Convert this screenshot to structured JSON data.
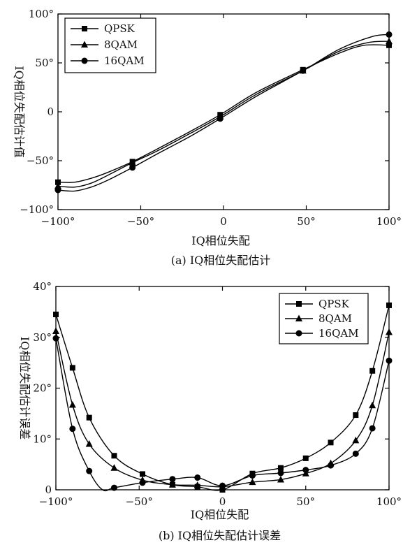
{
  "chart_data": [
    {
      "type": "line",
      "caption": "(a) IQ相位失配估计",
      "xlabel": "IQ相位失配",
      "ylabel": "IQ相位失配估计值",
      "xlim": [
        -100,
        100
      ],
      "ylim": [
        -100,
        100
      ],
      "xticks": [
        -100,
        -50,
        0,
        50,
        100
      ],
      "yticks": [
        -100,
        -50,
        0,
        50,
        100
      ],
      "xtick_labels": [
        "−100°",
        "−50°",
        "0",
        "50°",
        "100°"
      ],
      "ytick_labels": [
        "−100°",
        "−50°",
        "0",
        "50°",
        "100°"
      ],
      "legend": "top-left",
      "series": [
        {
          "name": "QPSK",
          "marker": "square",
          "x": [
            -100,
            -90,
            -80,
            -70,
            -55,
            -40,
            -20,
            -2,
            20,
            48,
            70,
            85,
            100
          ],
          "y": [
            -72,
            -72,
            -68,
            -62,
            -51,
            -38,
            -20,
            -3,
            20,
            43,
            60,
            68,
            68
          ],
          "marker_x": [
            -100,
            -55,
            -2,
            48,
            100
          ],
          "marker_y": [
            -72,
            -51,
            -3,
            43,
            68
          ]
        },
        {
          "name": "8QAM",
          "marker": "triangle",
          "x": [
            -100,
            -90,
            -80,
            -70,
            -55,
            -40,
            -20,
            -2,
            20,
            48,
            70,
            88,
            100
          ],
          "y": [
            -76,
            -77,
            -73,
            -65,
            -52,
            -40,
            -22,
            -5,
            18,
            42,
            62,
            71,
            72
          ],
          "marker_x": [
            -100,
            -55,
            -2,
            48,
            100
          ],
          "marker_y": [
            -76,
            -52,
            -5,
            42,
            72
          ]
        },
        {
          "name": "16QAM",
          "marker": "circle",
          "x": [
            -100,
            -90,
            -80,
            -70,
            -55,
            -40,
            -20,
            -2,
            20,
            48,
            70,
            90,
            100
          ],
          "y": [
            -80,
            -81,
            -77,
            -70,
            -57,
            -43,
            -25,
            -7,
            16,
            42,
            64,
            77,
            79
          ],
          "marker_x": [
            -100,
            -55,
            -2,
            48,
            100
          ],
          "marker_y": [
            -80,
            -57,
            -7,
            42,
            79
          ]
        }
      ]
    },
    {
      "type": "line",
      "caption": "(b) IQ相位失配估计误差",
      "xlabel": "IQ相位失配",
      "ylabel": "IQ相位失配估计误差",
      "xlim": [
        -100,
        100
      ],
      "ylim": [
        0,
        40
      ],
      "xticks": [
        -100,
        -50,
        0,
        50,
        100
      ],
      "yticks": [
        0,
        10,
        20,
        30,
        40
      ],
      "xtick_labels": [
        "−100°",
        "−50°",
        "0",
        "50°",
        "100°"
      ],
      "ytick_labels": [
        "0",
        "10°",
        "20°",
        "30°",
        "40°"
      ],
      "legend": "top-right",
      "series": [
        {
          "name": "QPSK",
          "marker": "square",
          "x": [
            -100,
            -90,
            -80,
            -65,
            -48,
            -30,
            -15,
            0,
            18,
            35,
            50,
            65,
            80,
            90,
            100
          ],
          "y": [
            34.5,
            24,
            14.2,
            6.7,
            3.1,
            1.0,
            0.6,
            0.0,
            3.2,
            4.3,
            6.2,
            9.3,
            14.7,
            23.4,
            36.3
          ],
          "marker_x": [
            -100,
            -90,
            -80,
            -65,
            -48,
            -30,
            -15,
            0,
            18,
            35,
            50,
            65,
            80,
            90,
            100
          ],
          "marker_y": [
            34.5,
            24,
            14.2,
            6.7,
            3.1,
            1.0,
            0.6,
            0.0,
            3.2,
            4.3,
            6.2,
            9.3,
            14.7,
            23.4,
            36.3
          ]
        },
        {
          "name": "8QAM",
          "marker": "triangle",
          "x": [
            -100,
            -90,
            -80,
            -65,
            -48,
            -30,
            -15,
            0,
            18,
            35,
            50,
            65,
            80,
            90,
            100
          ],
          "y": [
            31.2,
            16.7,
            9.0,
            4.3,
            1.9,
            1.0,
            0.9,
            0.6,
            1.5,
            2.0,
            3.2,
            5.2,
            9.7,
            16.6,
            31.0
          ],
          "marker_x": [
            -100,
            -90,
            -80,
            -65,
            -48,
            -30,
            -15,
            0,
            18,
            35,
            50,
            65,
            80,
            90,
            100
          ],
          "marker_y": [
            31.2,
            16.7,
            9.0,
            4.3,
            1.9,
            1.0,
            0.9,
            0.6,
            1.5,
            2.0,
            3.2,
            5.2,
            9.7,
            16.6,
            31.0
          ]
        },
        {
          "name": "16QAM",
          "marker": "circle",
          "x": [
            -100,
            -90,
            -80,
            -72,
            -65,
            -48,
            -30,
            -15,
            0,
            18,
            35,
            50,
            65,
            80,
            90,
            100
          ],
          "y": [
            29.8,
            12.0,
            3.7,
            0.0,
            0.4,
            1.4,
            2.1,
            2.4,
            0.8,
            2.8,
            3.3,
            3.9,
            4.8,
            7.1,
            12.1,
            25.4
          ],
          "marker_x": [
            -100,
            -90,
            -80,
            -65,
            -48,
            -30,
            -15,
            0,
            18,
            35,
            50,
            65,
            80,
            90,
            100
          ],
          "marker_y": [
            29.8,
            12.0,
            3.7,
            0.4,
            1.4,
            2.1,
            2.4,
            0.8,
            2.8,
            3.3,
            3.9,
            4.8,
            7.1,
            12.1,
            25.4
          ]
        }
      ]
    }
  ]
}
